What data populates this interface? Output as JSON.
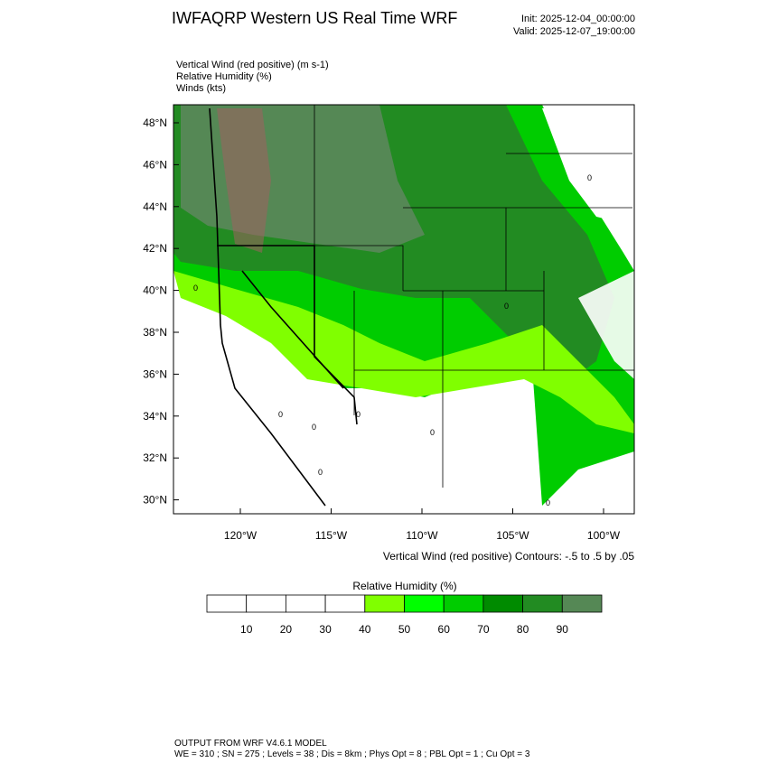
{
  "header": {
    "title": "IWFAQRP Western US Real Time WRF",
    "init": "Init: 2025-12-04_00:00:00",
    "valid": "Valid: 2025-12-07_19:00:00"
  },
  "fields": [
    "Vertical Wind (red positive)   (m s-1)",
    "Relative Humidity   (%)",
    "Winds   (kts)"
  ],
  "map": {
    "latitudes": [
      {
        "value": 48,
        "label": "48°N"
      },
      {
        "value": 46,
        "label": "46°N"
      },
      {
        "value": 44,
        "label": "44°N"
      },
      {
        "value": 42,
        "label": "42°N"
      },
      {
        "value": 40,
        "label": "40°N"
      },
      {
        "value": 38,
        "label": "38°N"
      },
      {
        "value": 36,
        "label": "36°N"
      },
      {
        "value": 34,
        "label": "34°N"
      },
      {
        "value": 32,
        "label": "32°N"
      },
      {
        "value": 30,
        "label": "30°N"
      }
    ],
    "longitudes": [
      {
        "value": -120,
        "label": "120°W"
      },
      {
        "value": -115,
        "label": "115°W"
      },
      {
        "value": -110,
        "label": "110°W"
      },
      {
        "value": -105,
        "label": "105°W"
      },
      {
        "value": -100,
        "label": "100°W"
      }
    ],
    "contour_note": "Vertical Wind (red positive) Contours: -.5 to .5 by .05"
  },
  "colorbar": {
    "title": "Relative Humidity  (%)",
    "levels": [
      10,
      20,
      30,
      40,
      50,
      60,
      70,
      80,
      90
    ],
    "colors": [
      "#ffffff",
      "#ffffff",
      "#ffffff",
      "#ffffff",
      "#80ff00",
      "#00ff00",
      "#00cc00",
      "#008b00",
      "#228b22",
      "#558855"
    ]
  },
  "footer": [
    "OUTPUT FROM WRF V4.6.1 MODEL",
    "WE = 310 ; SN = 275 ; Levels = 38 ; Dis = 8km ; Phys Opt = 8 ; PBL Opt = 1 ; Cu Opt = 3"
  ]
}
